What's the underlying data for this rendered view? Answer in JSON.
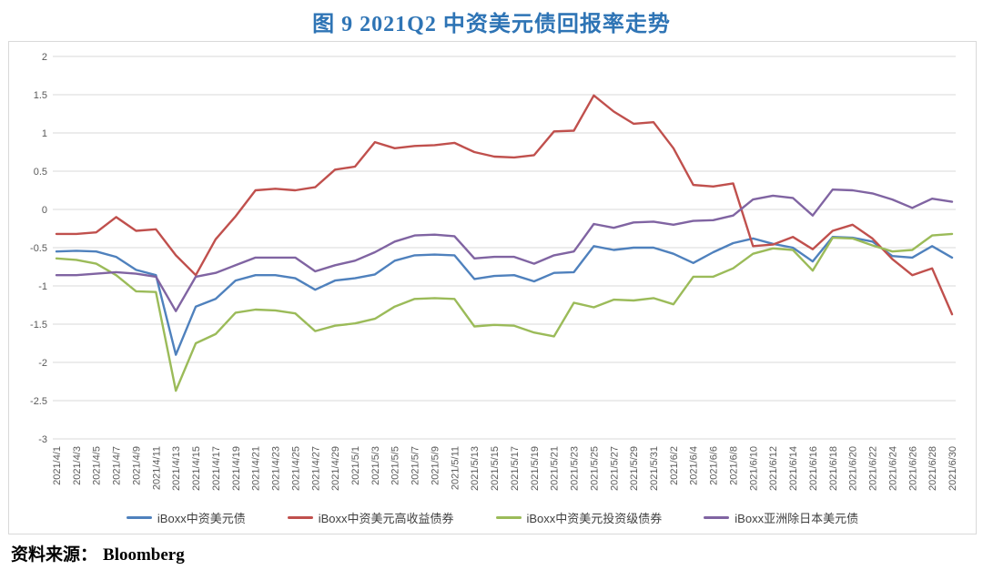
{
  "title": "图 9  2021Q2 中资美元债回报率走势",
  "source": {
    "label": "资料来源：",
    "value": "Bloomberg"
  },
  "colors": {
    "title_blue": "#2E74B5",
    "grid": "#d9d9d9",
    "tick_text": "#595959",
    "series_blue": "#4F81BD",
    "series_red": "#C0504D",
    "series_green": "#9BBB59",
    "series_purple": "#8064A2"
  },
  "chart_data": {
    "type": "line",
    "title": "图 9  2021Q2 中资美元债回报率走势",
    "xlabel": "",
    "ylabel": "",
    "ylim": [
      -3,
      2
    ],
    "ytick_labels": [
      "2",
      "1.5",
      "1",
      "0.5",
      "0",
      "-0.5",
      "-1",
      "-1.5",
      "-2",
      "-2.5",
      "-3"
    ],
    "grid": true,
    "legend_position": "bottom",
    "categories": [
      "2021/4/1",
      "2021/4/3",
      "2021/4/5",
      "2021/4/7",
      "2021/4/9",
      "2021/4/11",
      "2021/4/13",
      "2021/4/15",
      "2021/4/17",
      "2021/4/19",
      "2021/4/21",
      "2021/4/23",
      "2021/4/25",
      "2021/4/27",
      "2021/4/29",
      "2021/5/1",
      "2021/5/3",
      "2021/5/5",
      "2021/5/7",
      "2021/5/9",
      "2021/5/11",
      "2021/5/13",
      "2021/5/15",
      "2021/5/17",
      "2021/5/19",
      "2021/5/21",
      "2021/5/23",
      "2021/5/25",
      "2021/5/27",
      "2021/5/29",
      "2021/5/31",
      "2021/6/2",
      "2021/6/4",
      "2021/6/6",
      "2021/6/8",
      "2021/6/10",
      "2021/6/12",
      "2021/6/14",
      "2021/6/16",
      "2021/6/18",
      "2021/6/20",
      "2021/6/22",
      "2021/6/24",
      "2021/6/26",
      "2021/6/28",
      "2021/6/30"
    ],
    "series": [
      {
        "name": "iBoxx中资美元债",
        "color": "#4F81BD",
        "values": [
          -0.55,
          -0.54,
          -0.55,
          -0.62,
          -0.79,
          -0.86,
          -1.9,
          -1.27,
          -1.17,
          -0.93,
          -0.86,
          -0.86,
          -0.9,
          -1.05,
          -0.93,
          -0.9,
          -0.85,
          -0.67,
          -0.6,
          -0.59,
          -0.6,
          -0.91,
          -0.87,
          -0.86,
          -0.94,
          -0.83,
          -0.82,
          -0.48,
          -0.53,
          -0.5,
          -0.5,
          -0.58,
          -0.7,
          -0.56,
          -0.44,
          -0.38,
          -0.45,
          -0.5,
          -0.68,
          -0.36,
          -0.37,
          -0.42,
          -0.61,
          -0.63,
          -0.48,
          -0.63
        ]
      },
      {
        "name": "iBoxx中资美元高收益债券",
        "color": "#C0504D",
        "values": [
          -0.32,
          -0.32,
          -0.3,
          -0.1,
          -0.28,
          -0.26,
          -0.6,
          -0.86,
          -0.39,
          -0.09,
          0.25,
          0.27,
          0.25,
          0.29,
          0.52,
          0.56,
          0.88,
          0.8,
          0.83,
          0.84,
          0.87,
          0.75,
          0.69,
          0.68,
          0.71,
          1.02,
          1.03,
          1.49,
          1.28,
          1.12,
          1.14,
          0.8,
          0.32,
          0.3,
          0.34,
          -0.48,
          -0.46,
          -0.36,
          -0.52,
          -0.28,
          -0.2,
          -0.38,
          -0.65,
          -0.86,
          -0.77,
          -1.37
        ]
      },
      {
        "name": "iBoxx中资美元投资级债券",
        "color": "#9BBB59",
        "values": [
          -0.64,
          -0.66,
          -0.71,
          -0.86,
          -1.07,
          -1.08,
          -2.37,
          -1.75,
          -1.63,
          -1.35,
          -1.31,
          -1.32,
          -1.36,
          -1.59,
          -1.52,
          -1.49,
          -1.43,
          -1.27,
          -1.17,
          -1.16,
          -1.17,
          -1.53,
          -1.51,
          -1.52,
          -1.61,
          -1.66,
          -1.22,
          -1.28,
          -1.18,
          -1.19,
          -1.16,
          -1.24,
          -0.88,
          -0.88,
          -0.77,
          -0.58,
          -0.51,
          -0.53,
          -0.8,
          -0.37,
          -0.38,
          -0.47,
          -0.55,
          -0.53,
          -0.34,
          -0.32
        ]
      },
      {
        "name": "iBoxx亚洲除日本美元债",
        "color": "#8064A2",
        "values": [
          -0.86,
          -0.86,
          -0.84,
          -0.82,
          -0.84,
          -0.88,
          -1.33,
          -0.88,
          -0.83,
          -0.73,
          -0.63,
          -0.63,
          -0.63,
          -0.81,
          -0.73,
          -0.67,
          -0.56,
          -0.42,
          -0.34,
          -0.33,
          -0.35,
          -0.64,
          -0.62,
          -0.62,
          -0.71,
          -0.6,
          -0.55,
          -0.19,
          -0.24,
          -0.17,
          -0.16,
          -0.2,
          -0.15,
          -0.14,
          -0.08,
          0.13,
          0.18,
          0.15,
          -0.08,
          0.26,
          0.25,
          0.21,
          0.13,
          0.02,
          0.14,
          0.1
        ]
      }
    ]
  }
}
